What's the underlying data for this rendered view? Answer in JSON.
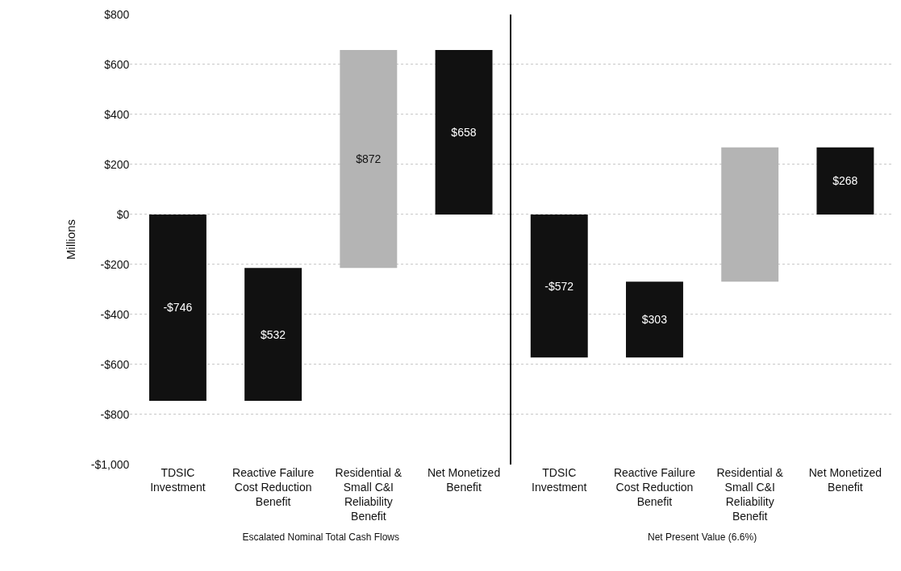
{
  "chart_data": [
    {
      "type": "bar",
      "xlabel": "Escalated Nominal Total Cash Flows",
      "ylabel": "Millions",
      "categories": [
        "TDSIC\nInvestment",
        "Reactive Failure\nCost Reduction\nBenefit",
        "Residential &\nSmall C&I\nReliability\nBenefit",
        "Net Monetized\nBenefit"
      ],
      "values": [
        -746,
        532,
        872,
        658
      ],
      "base": [
        0,
        -746,
        -214,
        0
      ],
      "colors": [
        "#111111",
        "#111111",
        "#b4b4b4",
        "#111111"
      ],
      "value_labels": [
        "-$746",
        "$532",
        "$872",
        "$658"
      ],
      "ylim": [
        -1000,
        800
      ],
      "yticks": [
        {
          "value": 800,
          "label": "$800"
        },
        {
          "value": 600,
          "label": "$600"
        },
        {
          "value": 400,
          "label": "$400"
        },
        {
          "value": 200,
          "label": "$200"
        },
        {
          "value": 0,
          "label": "$0"
        },
        {
          "value": -200,
          "label": "-$200"
        },
        {
          "value": -400,
          "label": "-$400"
        },
        {
          "value": -600,
          "label": "-$600"
        },
        {
          "value": -800,
          "label": "-$800"
        },
        {
          "value": -1000,
          "label": "-$1,000"
        }
      ],
      "grid": "y"
    },
    {
      "type": "bar",
      "xlabel": "Net Present Value (6.6%)",
      "categories": [
        "TDSIC\nInvestment",
        "Reactive Failure\nCost Reduction\nBenefit",
        "Residential &\nSmall C&I\nReliability\nBenefit",
        "Net Monetized\nBenefit"
      ],
      "values": [
        -572,
        303,
        537,
        268
      ],
      "base": [
        0,
        -572,
        -269,
        0
      ],
      "colors": [
        "#111111",
        "#111111",
        "#b4b4b4",
        "#111111"
      ],
      "value_labels": [
        "-$572",
        "$303",
        null,
        "$268"
      ],
      "ylim": [
        -1000,
        800
      ],
      "yticks": [
        {
          "value": 800,
          "label": null
        },
        {
          "value": 600,
          "label": null
        },
        {
          "value": 400,
          "label": null
        },
        {
          "value": 200,
          "label": null
        },
        {
          "value": 0,
          "label": null
        },
        {
          "value": -200,
          "label": null
        },
        {
          "value": -400,
          "label": null
        },
        {
          "value": -600,
          "label": null
        },
        {
          "value": -800,
          "label": null
        },
        {
          "value": -1000,
          "label": null
        }
      ],
      "grid": "y",
      "tick_labels": "x"
    }
  ]
}
